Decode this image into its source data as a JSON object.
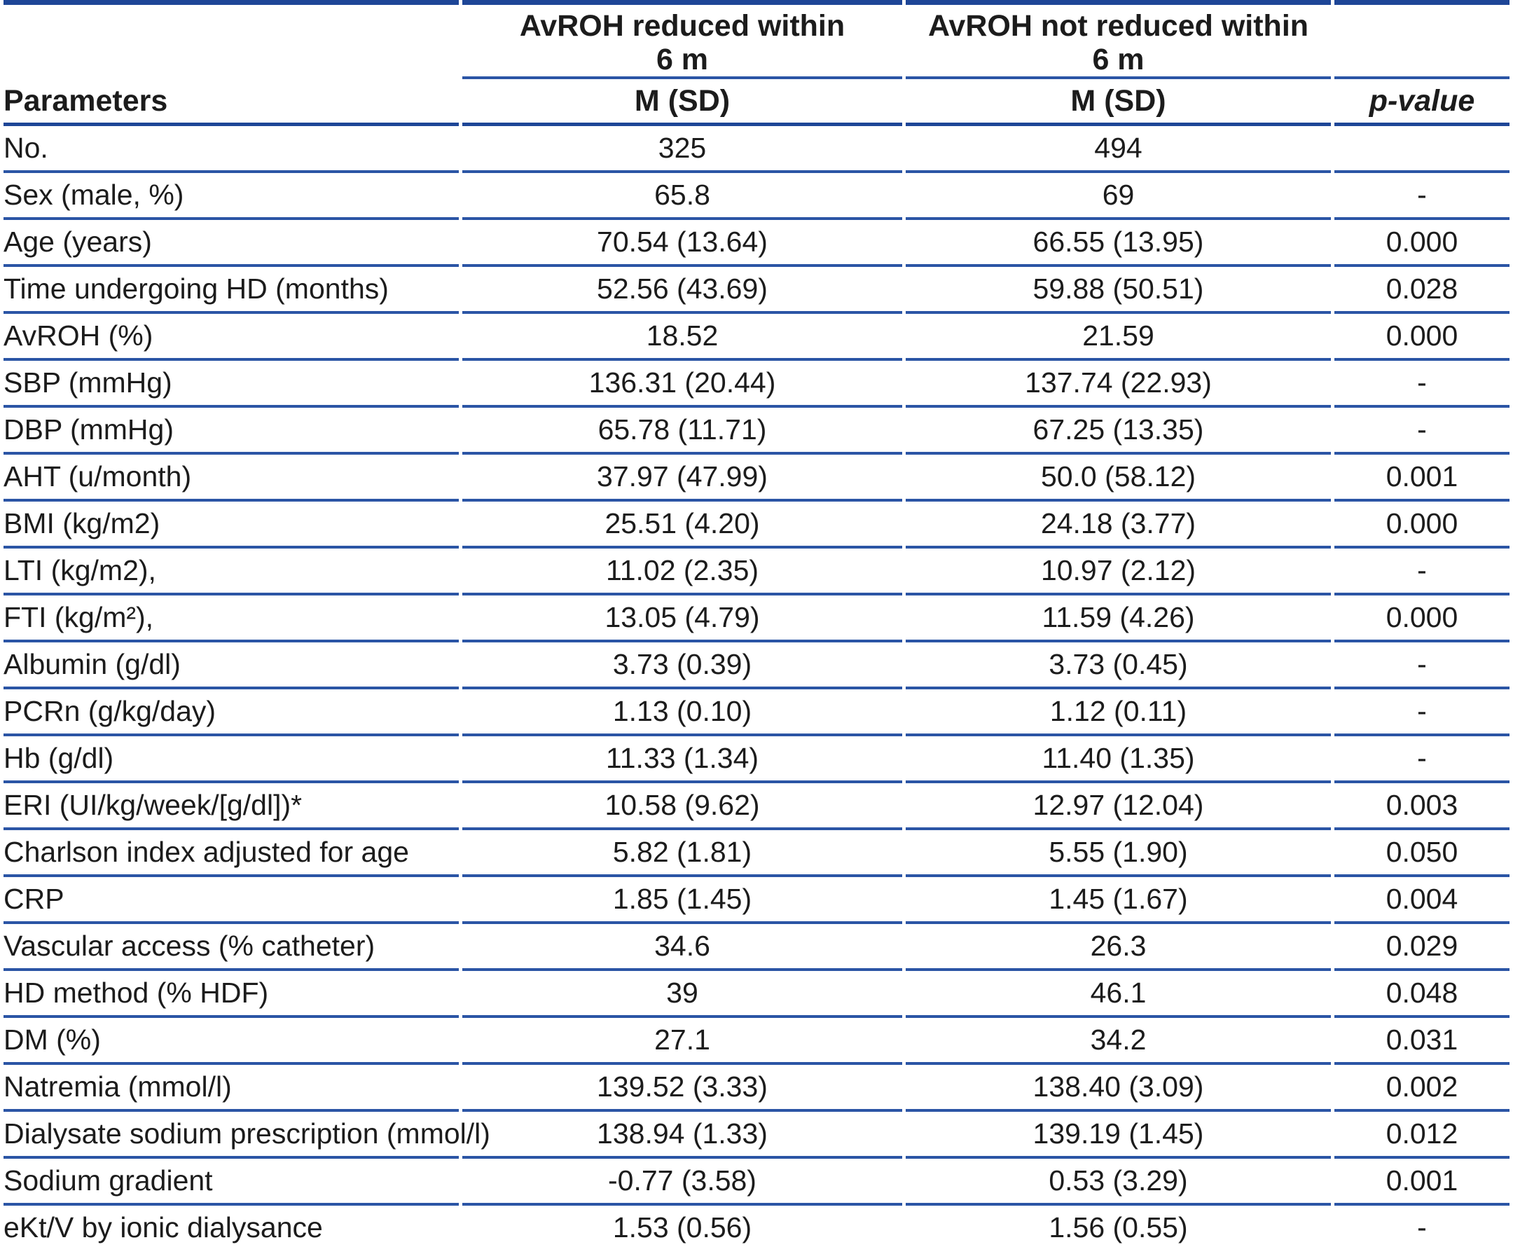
{
  "table": {
    "group_headers": [
      {
        "title": "AvROH reduced within\n6 m"
      },
      {
        "title": "AvROH not reduced within\n6 m"
      }
    ],
    "column_headers": {
      "parameters": "Parameters",
      "group1_stat": "M (SD)",
      "group2_stat": "M (SD)",
      "p_value": "p-value"
    },
    "rows": [
      {
        "parameter": "No.",
        "group1": "325",
        "group2": "494",
        "p": ""
      },
      {
        "parameter": "Sex (male, %)",
        "group1": "65.8",
        "group2": "69",
        "p": "-"
      },
      {
        "parameter": "Age (years)",
        "group1": "70.54 (13.64)",
        "group2": "66.55 (13.95)",
        "p": "0.000"
      },
      {
        "parameter": "Time undergoing HD (months)",
        "group1": "52.56 (43.69)",
        "group2": "59.88 (50.51)",
        "p": "0.028"
      },
      {
        "parameter": "AvROH (%)",
        "group1": "18.52",
        "group2": "21.59",
        "p": "0.000"
      },
      {
        "parameter": "SBP (mmHg)",
        "group1": "136.31 (20.44)",
        "group2": "137.74 (22.93)",
        "p": "-"
      },
      {
        "parameter": "DBP (mmHg)",
        "group1": "65.78 (11.71)",
        "group2": "67.25 (13.35)",
        "p": "-"
      },
      {
        "parameter": "AHT (u/month)",
        "group1": "37.97 (47.99)",
        "group2": "50.0 (58.12)",
        "p": "0.001"
      },
      {
        "parameter": "BMI (kg/m2)",
        "group1": "25.51 (4.20)",
        "group2": "24.18 (3.77)",
        "p": "0.000"
      },
      {
        "parameter": "LTI (kg/m2),",
        "group1": "11.02 (2.35)",
        "group2": "10.97 (2.12)",
        "p": "-"
      },
      {
        "parameter": "FTI (kg/m²),",
        "group1": "13.05 (4.79)",
        "group2": "11.59 (4.26)",
        "p": "0.000"
      },
      {
        "parameter": "Albumin (g/dl)",
        "group1": "3.73 (0.39)",
        "group2": "3.73 (0.45)",
        "p": "-"
      },
      {
        "parameter": "PCRn (g/kg/day)",
        "group1": "1.13 (0.10)",
        "group2": "1.12 (0.11)",
        "p": "-"
      },
      {
        "parameter": "Hb (g/dl)",
        "group1": "11.33 (1.34)",
        "group2": "11.40 (1.35)",
        "p": "-"
      },
      {
        "parameter": "ERI (UI/kg/week/[g/dl])*",
        "group1": "10.58 (9.62)",
        "group2": "12.97 (12.04)",
        "p": "0.003"
      },
      {
        "parameter": "Charlson index adjusted for age",
        "group1": "5.82 (1.81)",
        "group2": "5.55 (1.90)",
        "p": "0.050"
      },
      {
        "parameter": "CRP",
        "group1": "1.85 (1.45)",
        "group2": "1.45 (1.67)",
        "p": "0.004"
      },
      {
        "parameter": "Vascular access (% catheter)",
        "group1": "34.6",
        "group2": "26.3",
        "p": "0.029"
      },
      {
        "parameter": "HD method (% HDF)",
        "group1": "39",
        "group2": "46.1",
        "p": "0.048"
      },
      {
        "parameter": "DM (%)",
        "group1": "27.1",
        "group2": "34.2",
        "p": "0.031"
      },
      {
        "parameter": "Natremia (mmol/l)",
        "group1": "139.52 (3.33)",
        "group2": "138.40 (3.09)",
        "p": "0.002"
      },
      {
        "parameter": "Dialysate sodium prescription (mmol/l)",
        "group1": "138.94 (1.33)",
        "group2": "139.19 (1.45)",
        "p": "0.012"
      },
      {
        "parameter": "Sodium gradient",
        "group1": "-0.77 (3.58)",
        "group2": "0.53 (3.29)",
        "p": "0.001"
      },
      {
        "parameter": "eKt/V by ionic dialysance",
        "group1": "1.53 (0.56)",
        "group2": "1.56 (0.55)",
        "p": "-"
      }
    ],
    "colors": {
      "rule_blue": "#2b55a5",
      "rule_dark_blue": "#1e4697",
      "text": "#1c1c1c"
    }
  }
}
